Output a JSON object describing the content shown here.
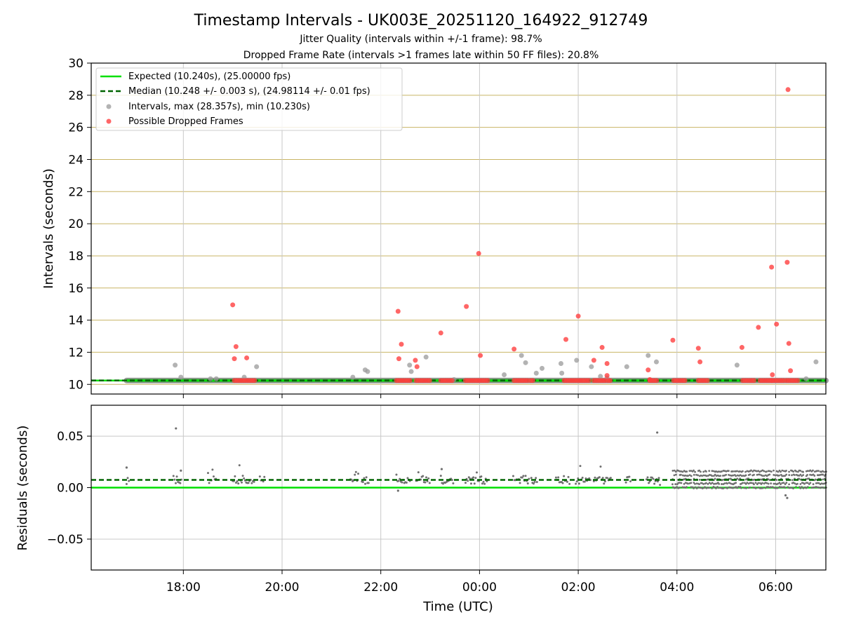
{
  "header": {
    "title": "Timestamp Intervals - UK003E_20251120_164922_912749",
    "subtitle1": "Jitter Quality (intervals within +/-1 frame): 98.7%",
    "subtitle2": "Dropped Frame Rate (intervals >1 frames late within 50 FF files): 20.8%"
  },
  "colors": {
    "expected": "#00e000",
    "median": "#006400",
    "interval": "#999999",
    "dropped": "#ff4040",
    "ygrid": "#c8b464",
    "grid": "#c8c8c8",
    "residual": "#707070"
  },
  "chart_data": [
    {
      "type": "scatter",
      "panel": "intervals",
      "ylabel": "Intervals (seconds)",
      "ylim": [
        9.4,
        30
      ],
      "yticks": [
        10,
        12,
        14,
        16,
        18,
        20,
        22,
        24,
        26,
        28,
        30
      ],
      "xlim": [
        "16:08",
        "07:01"
      ],
      "xticks": [
        "18:00",
        "20:00",
        "22:00",
        "00:00",
        "02:00",
        "04:00",
        "06:00"
      ],
      "xtick_labels": [
        "",
        "",
        "",
        "",
        "",
        "",
        ""
      ],
      "grid": "x and y",
      "legend": "top-left",
      "legend_entries": [
        "Expected (10.240s), (25.00000 fps)",
        "Median (10.248 +/- 0.003 s), (24.98114 +/- 0.01 fps)",
        "Intervals, max (28.357s), min (10.230s)",
        "Possible Dropped Frames"
      ],
      "expected": 10.24,
      "median": 10.248,
      "baseline_band": {
        "from": "16:51",
        "to": "07:01",
        "value": 10.24
      },
      "series": [
        {
          "name": "Intervals, max (28.357s), min (10.230s)",
          "points": [
            [
              "17:50",
              11.2
            ],
            [
              "17:57",
              10.45
            ],
            [
              "18:33",
              10.35
            ],
            [
              "18:40",
              10.35
            ],
            [
              "19:14",
              10.45
            ],
            [
              "19:29",
              11.1
            ],
            [
              "21:26",
              10.45
            ],
            [
              "21:41",
              10.9
            ],
            [
              "21:44",
              10.8
            ],
            [
              "22:35",
              11.2
            ],
            [
              "22:37",
              10.8
            ],
            [
              "22:55",
              11.7
            ],
            [
              "23:29",
              10.3
            ],
            [
              "00:30",
              10.6
            ],
            [
              "00:51",
              11.8
            ],
            [
              "00:56",
              11.35
            ],
            [
              "01:09",
              10.7
            ],
            [
              "01:16",
              11.0
            ],
            [
              "01:39",
              11.3
            ],
            [
              "01:40",
              10.7
            ],
            [
              "01:58",
              11.5
            ],
            [
              "02:16",
              11.1
            ],
            [
              "02:27",
              10.5
            ],
            [
              "02:35",
              10.4
            ],
            [
              "02:59",
              11.1
            ],
            [
              "03:25",
              11.8
            ],
            [
              "03:35",
              11.4
            ],
            [
              "05:13",
              11.2
            ],
            [
              "06:37",
              10.35
            ],
            [
              "06:49",
              11.4
            ]
          ]
        },
        {
          "name": "Possible Dropped Frames",
          "points": [
            [
              "19:00",
              14.95
            ],
            [
              "19:02",
              11.6
            ],
            [
              "19:04",
              12.35
            ],
            [
              "19:17",
              11.65
            ],
            [
              "22:21",
              14.55
            ],
            [
              "22:22",
              11.6
            ],
            [
              "22:25",
              12.5
            ],
            [
              "22:42",
              11.5
            ],
            [
              "22:44",
              11.1
            ],
            [
              "23:13",
              13.2
            ],
            [
              "23:44",
              14.85
            ],
            [
              "23:59",
              18.15
            ],
            [
              "00:01",
              11.8
            ],
            [
              "00:42",
              12.2
            ],
            [
              "01:45",
              12.8
            ],
            [
              "02:00",
              14.25
            ],
            [
              "02:19",
              11.5
            ],
            [
              "02:29",
              12.3
            ],
            [
              "02:35",
              10.55
            ],
            [
              "02:35",
              11.3
            ],
            [
              "03:25",
              10.9
            ],
            [
              "03:27",
              10.3
            ],
            [
              "03:55",
              12.75
            ],
            [
              "04:26",
              12.25
            ],
            [
              "04:28",
              11.4
            ],
            [
              "05:19",
              12.3
            ],
            [
              "05:39",
              13.55
            ],
            [
              "05:55",
              17.3
            ],
            [
              "05:56",
              10.6
            ],
            [
              "06:01",
              13.75
            ],
            [
              "06:14",
              17.6
            ],
            [
              "06:15",
              28.35
            ],
            [
              "06:16",
              12.55
            ],
            [
              "06:18",
              10.85
            ]
          ],
          "floor_runs": [
            [
              "19:02",
              "19:27"
            ],
            [
              "22:19",
              "22:36"
            ],
            [
              "22:43",
              "23:00"
            ],
            [
              "23:13",
              "23:29"
            ],
            [
              "23:43",
              "23:59"
            ],
            [
              "23:59",
              "00:10"
            ],
            [
              "00:42",
              "01:00"
            ],
            [
              "01:02",
              "01:05"
            ],
            [
              "01:43",
              "02:00"
            ],
            [
              "02:02",
              "02:15"
            ],
            [
              "02:19",
              "02:35"
            ],
            [
              "02:36",
              "02:40"
            ],
            [
              "03:27",
              "03:37"
            ],
            [
              "03:56",
              "04:10"
            ],
            [
              "04:26",
              "04:38"
            ],
            [
              "05:20",
              "05:35"
            ],
            [
              "05:41",
              "05:56"
            ],
            [
              "05:56",
              "06:10"
            ],
            [
              "06:13",
              "06:27"
            ]
          ]
        }
      ]
    },
    {
      "type": "scatter",
      "panel": "residuals",
      "xlabel": "Time (UTC)",
      "ylabel": "Residuals (seconds)",
      "ylim": [
        -0.08,
        0.08
      ],
      "yticks": [
        -0.05,
        0.0,
        0.05
      ],
      "ytick_labels": [
        "−0.05",
        "0.00",
        "0.05"
      ],
      "xlim": [
        "16:08",
        "07:01"
      ],
      "xticks": [
        "18:00",
        "20:00",
        "22:00",
        "00:00",
        "02:00",
        "04:00",
        "06:00"
      ],
      "xtick_labels": [
        "18:00",
        "20:00",
        "22:00",
        "00:00",
        "02:00",
        "04:00",
        "06:00"
      ],
      "grid": "x and y",
      "expected_residual": 0.0,
      "median_residual": 0.0075,
      "series": [
        {
          "name": "Residuals",
          "clusters": [
            [
              "16:51",
              "16:55"
            ],
            [
              "17:48",
              "17:58"
            ],
            [
              "18:30",
              "18:40"
            ],
            [
              "19:00",
              "19:27"
            ],
            [
              "19:33",
              "19:39"
            ],
            [
              "21:23",
              "21:33"
            ],
            [
              "21:37",
              "21:46"
            ],
            [
              "22:19",
              "22:36"
            ],
            [
              "22:43",
              "23:00"
            ],
            [
              "23:13",
              "23:29"
            ],
            [
              "23:43",
              "24:10"
            ],
            [
              "24:41",
              "25:01"
            ],
            [
              "25:03",
              "25:10"
            ],
            [
              "25:33",
              "25:50"
            ],
            [
              "25:57",
              "26:15"
            ],
            [
              "26:19",
              "26:40"
            ],
            [
              "26:58",
              "27:04"
            ],
            [
              "27:23",
              "27:40"
            ]
          ],
          "dense_region": [
            "27:55",
            "31:01"
          ],
          "outliers": [
            [
              "16:51",
              0.0195
            ],
            [
              "17:51",
              0.0575
            ],
            [
              "17:57",
              0.0165
            ],
            [
              "22:21",
              -0.003
            ],
            [
              "23:14",
              0.018
            ],
            [
              "03:36",
              0.0535
            ],
            [
              "06:12",
              -0.0075
            ],
            [
              "06:14",
              -0.01
            ]
          ]
        }
      ]
    }
  ]
}
